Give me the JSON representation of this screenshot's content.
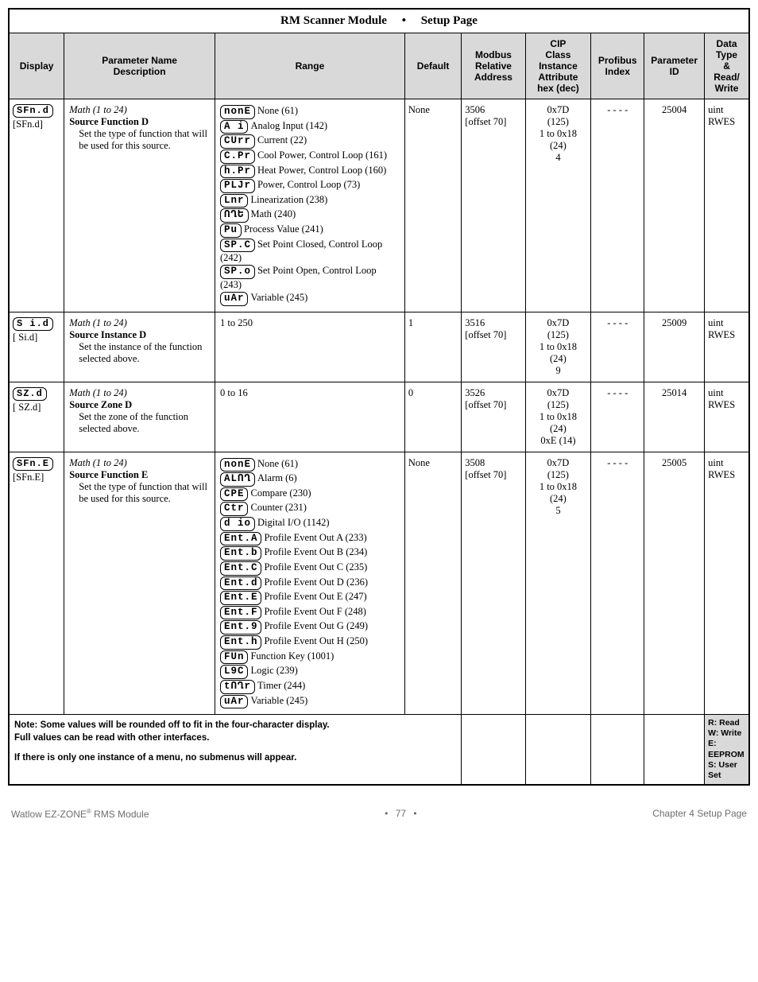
{
  "page": {
    "title": "RM Scanner Module",
    "bullet": "•",
    "subtitle": "Setup Page"
  },
  "headers": {
    "display": "Display",
    "pname_l1": "Parameter Name",
    "pname_l2": "Description",
    "range": "Range",
    "default": "Default",
    "modbus_l1": "Modbus",
    "modbus_l2": "Relative",
    "modbus_l3": "Address",
    "cip_l1": "CIP",
    "cip_l2": "Class",
    "cip_l3": "Instance",
    "cip_l4": "Attribute",
    "cip_l5": "hex (dec)",
    "profibus_l1": "Profibus",
    "profibus_l2": "Index",
    "param_l1": "Parameter",
    "param_l2": "ID",
    "dtype_l1": "Data",
    "dtype_l2": "Type",
    "dtype_l3": "&",
    "dtype_l4": "Read/",
    "dtype_l5": "Write"
  },
  "colwidths": {
    "display": "62px",
    "pname": "170px",
    "range": "214px",
    "default": "64px",
    "modbus": "72px",
    "cip": "74px",
    "profibus": "60px",
    "paramid": "68px",
    "dtype": "50px"
  },
  "rows": [
    {
      "display_seg": "SFn.d",
      "display_br": "[SFn.d]",
      "pname_it": "Math (1 to 24)",
      "pname_b": "Source Function D",
      "pname_d1": "Set the type of function that will be used for this source.",
      "default": "None",
      "modbus_l1": "3506",
      "modbus_l2": "[offset 70]",
      "cip_l1": "0x7D",
      "cip_l2": "(125)",
      "cip_l3": "1 to 0x18",
      "cip_l4": "(24)",
      "cip_l5": "4",
      "profibus": "- - - -",
      "paramid": "25004",
      "dtype_l1": "uint",
      "dtype_l2": "RWES",
      "range": [
        {
          "seg": "nonE",
          "txt": "None (61)"
        },
        {
          "seg": " A i",
          "txt": "Analog Input (142)"
        },
        {
          "seg": "CUrr",
          "txt": "Current (22)"
        },
        {
          "seg": "C.Pr",
          "txt": "Cool Power, Control Loop (161)"
        },
        {
          "seg": "h.Pr",
          "txt": "Heat Power, Control Loop (160)"
        },
        {
          "seg": "PLJr",
          "txt": "Power, Control Loop (73)"
        },
        {
          "seg": " Lnr",
          "txt": "Linearization (238)"
        },
        {
          "seg": "ՈՂԵ",
          "txt": "Math (240)"
        },
        {
          "seg": " Pu",
          "txt": "Process Value (241)"
        },
        {
          "seg": "SP.C",
          "txt": "Set Point Closed, Control Loop (242)"
        },
        {
          "seg": "SP.o",
          "txt": "Set Point Open, Control Loop (243)"
        },
        {
          "seg": " uAr",
          "txt": "Variable (245)"
        }
      ]
    },
    {
      "display_seg": " S i.d",
      "display_br": "[ Si.d]",
      "pname_it": "Math (1 to 24)",
      "pname_b": "Source Instance D",
      "pname_d1": "Set the instance of the function selected above.",
      "default": "1",
      "modbus_l1": "3516",
      "modbus_l2": "[offset 70]",
      "cip_l1": "0x7D",
      "cip_l2": "(125)",
      "cip_l3": "1 to 0x18",
      "cip_l4": "(24)",
      "cip_l5": "9",
      "profibus": "- - - -",
      "paramid": "25009",
      "dtype_l1": "uint",
      "dtype_l2": "RWES",
      "range_plain": "1 to 250"
    },
    {
      "display_seg": " SZ.d",
      "display_br": "[ SZ.d]",
      "pname_it": "Math (1 to 24)",
      "pname_b": "Source Zone D",
      "pname_d1": "Set the zone of the function selected above.",
      "default": "0",
      "modbus_l1": "3526",
      "modbus_l2": "[offset 70]",
      "cip_l1": "0x7D",
      "cip_l2": "(125)",
      "cip_l3": "1 to 0x18",
      "cip_l4": "(24)",
      "cip_l5": "0xE (14)",
      "profibus": "- - - -",
      "paramid": "25014",
      "dtype_l1": "uint",
      "dtype_l2": "RWES",
      "range_plain": "0 to 16"
    },
    {
      "display_seg": "SFn.E",
      "display_br": "[SFn.E]",
      "pname_it": "Math (1 to 24)",
      "pname_b": "Source Function E",
      "pname_d1": "Set the type of function that will be used for this source.",
      "default": "None",
      "modbus_l1": "3508",
      "modbus_l2": "[offset 70]",
      "cip_l1": "0x7D",
      "cip_l2": "(125)",
      "cip_l3": "1 to 0x18",
      "cip_l4": "(24)",
      "cip_l5": "5",
      "profibus": "- - - -",
      "paramid": "25005",
      "dtype_l1": "uint",
      "dtype_l2": "RWES",
      "range": [
        {
          "seg": "nonE",
          "txt": "None (61)"
        },
        {
          "seg": "ALՈՂ",
          "txt": "Alarm (6)"
        },
        {
          "seg": " CPE",
          "txt": "Compare (230)"
        },
        {
          "seg": " Ctr",
          "txt": "Counter (231)"
        },
        {
          "seg": " d io",
          "txt": "Digital I/O (1142)"
        },
        {
          "seg": "Ent.A",
          "txt": "Profile Event Out A (233)"
        },
        {
          "seg": "Ent.b",
          "txt": "Profile Event Out B (234)"
        },
        {
          "seg": "Ent.C",
          "txt": "Profile Event Out C (235)"
        },
        {
          "seg": "Ent.d",
          "txt": "Profile Event Out D (236)"
        },
        {
          "seg": "Ent.E",
          "txt": "Profile Event Out E (247)"
        },
        {
          "seg": "Ent.F",
          "txt": "Profile Event Out F (248)"
        },
        {
          "seg": "Ent.9",
          "txt": "Profile Event Out G (249)"
        },
        {
          "seg": "Ent.h",
          "txt": "Profile Event Out H (250)"
        },
        {
          "seg": " FUn",
          "txt": "Function Key (1001)"
        },
        {
          "seg": " L9C",
          "txt": "Logic (239)"
        },
        {
          "seg": "tՈՂr",
          "txt": "Timer (244)"
        },
        {
          "seg": " uAr",
          "txt": "Variable (245)"
        }
      ]
    }
  ],
  "note": {
    "l1": "Note: Some values will be rounded off to fit in the four-character display.",
    "l2": "Full values can be read with other interfaces.",
    "l3": "If there is only one instance of a menu, no submenus will appear."
  },
  "legend": {
    "l1": "R: Read",
    "l2": "W: Write",
    "l3": "E: EEPROM",
    "l4": "S: User Set"
  },
  "footer": {
    "left_a": "Watlow EZ-ZONE",
    "left_sup": "®",
    "left_b": " RMS Module",
    "mid_bullet": "•",
    "mid_num": "77",
    "right": "Chapter 4 Setup Page"
  }
}
